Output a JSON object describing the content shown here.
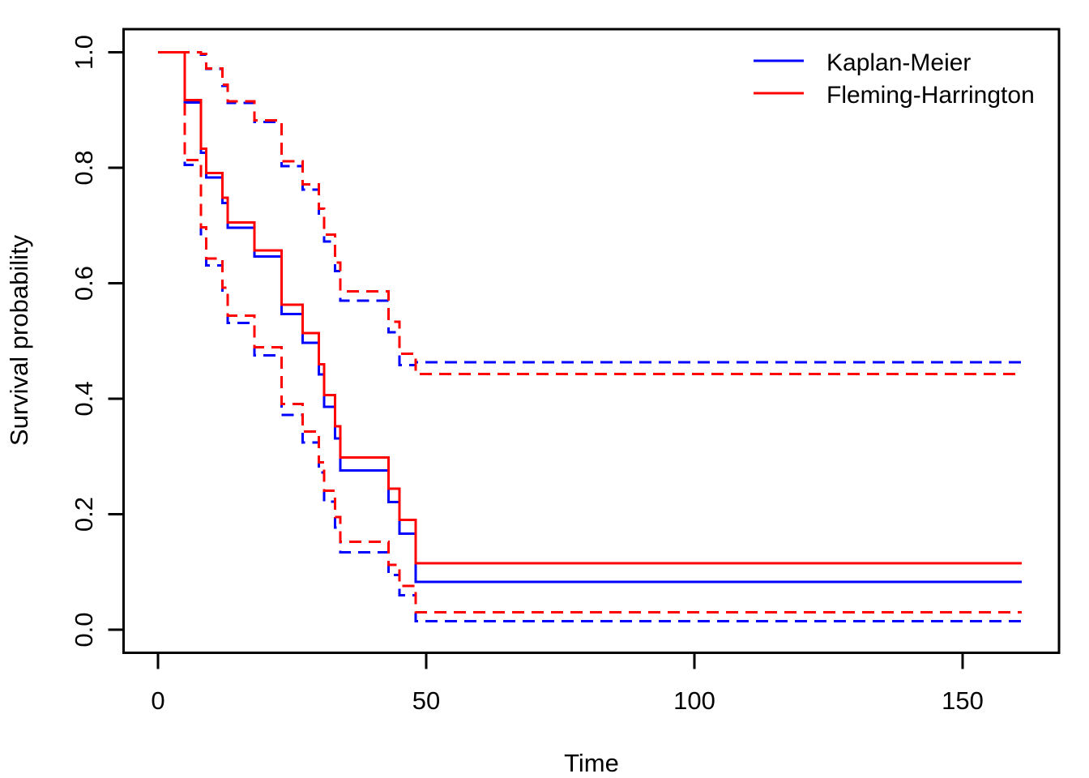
{
  "figure": {
    "background": "#FFFFFF",
    "title": ""
  },
  "chart_data": {
    "type": "line",
    "subtype": "step-survival-curves",
    "title": "",
    "xlabel": "Time",
    "ylabel": "Survival probability",
    "x_ticks": [
      0,
      50,
      100,
      150
    ],
    "y_ticks": [
      "0.0",
      "0.2",
      "0.4",
      "0.6",
      "0.8",
      "1.0"
    ],
    "xlim": [
      0,
      161
    ],
    "ylim": [
      0,
      1
    ],
    "grid": false,
    "colors": {
      "kaplan_meier": "#0000FF",
      "fleming_harrington": "#FF0000",
      "axis": "#000000"
    },
    "legend": {
      "position": "topright",
      "entries": [
        {
          "label": "Kaplan-Meier",
          "color": "#0000FF",
          "line": "solid"
        },
        {
          "label": "Fleming-Harrington",
          "color": "#FF0000",
          "line": "solid"
        }
      ]
    },
    "times": [
      0,
      5,
      8,
      9,
      12,
      13,
      18,
      23,
      27,
      30,
      31,
      33,
      34,
      43,
      45,
      48,
      161
    ],
    "series": [
      {
        "name": "kaplan-meier-estimate",
        "color": "#0000FF",
        "line": "solid",
        "values": [
          1,
          0.913,
          0.826,
          0.783,
          0.739,
          0.696,
          0.646,
          0.547,
          0.497,
          0.442,
          0.386,
          0.331,
          0.276,
          0.221,
          0.166,
          0.083,
          0.083
        ]
      },
      {
        "name": "kaplan-meier-lower-ci",
        "color": "#0000FF",
        "line": "dashed",
        "values": [
          1,
          0.805,
          0.685,
          0.631,
          0.58,
          0.531,
          0.475,
          0.372,
          0.324,
          0.272,
          0.222,
          0.177,
          0.134,
          0.095,
          0.06,
          0.015,
          0.015
        ]
      },
      {
        "name": "kaplan-meier-upper-ci",
        "color": "#0000FF",
        "line": "dashed",
        "values": [
          1,
          1.0,
          0.996,
          0.971,
          0.942,
          0.912,
          0.879,
          0.803,
          0.762,
          0.718,
          0.672,
          0.621,
          0.57,
          0.515,
          0.458,
          0.463,
          0.463
        ]
      },
      {
        "name": "fleming-harrington-estimate",
        "color": "#FF0000",
        "line": "solid",
        "values": [
          1,
          0.917,
          0.833,
          0.791,
          0.748,
          0.705,
          0.657,
          0.563,
          0.514,
          0.46,
          0.406,
          0.352,
          0.298,
          0.244,
          0.19,
          0.115,
          0.115
        ]
      },
      {
        "name": "fleming-harrington-lower-ci",
        "color": "#FF0000",
        "line": "dashed",
        "values": [
          1,
          0.813,
          0.697,
          0.643,
          0.592,
          0.544,
          0.489,
          0.391,
          0.343,
          0.29,
          0.241,
          0.195,
          0.152,
          0.112,
          0.076,
          0.03,
          0.03
        ]
      },
      {
        "name": "fleming-harrington-upper-ci",
        "color": "#FF0000",
        "line": "dashed",
        "values": [
          1,
          1.0,
          0.997,
          0.972,
          0.944,
          0.915,
          0.882,
          0.811,
          0.771,
          0.729,
          0.684,
          0.636,
          0.586,
          0.533,
          0.478,
          0.443,
          0.443
        ]
      }
    ]
  }
}
